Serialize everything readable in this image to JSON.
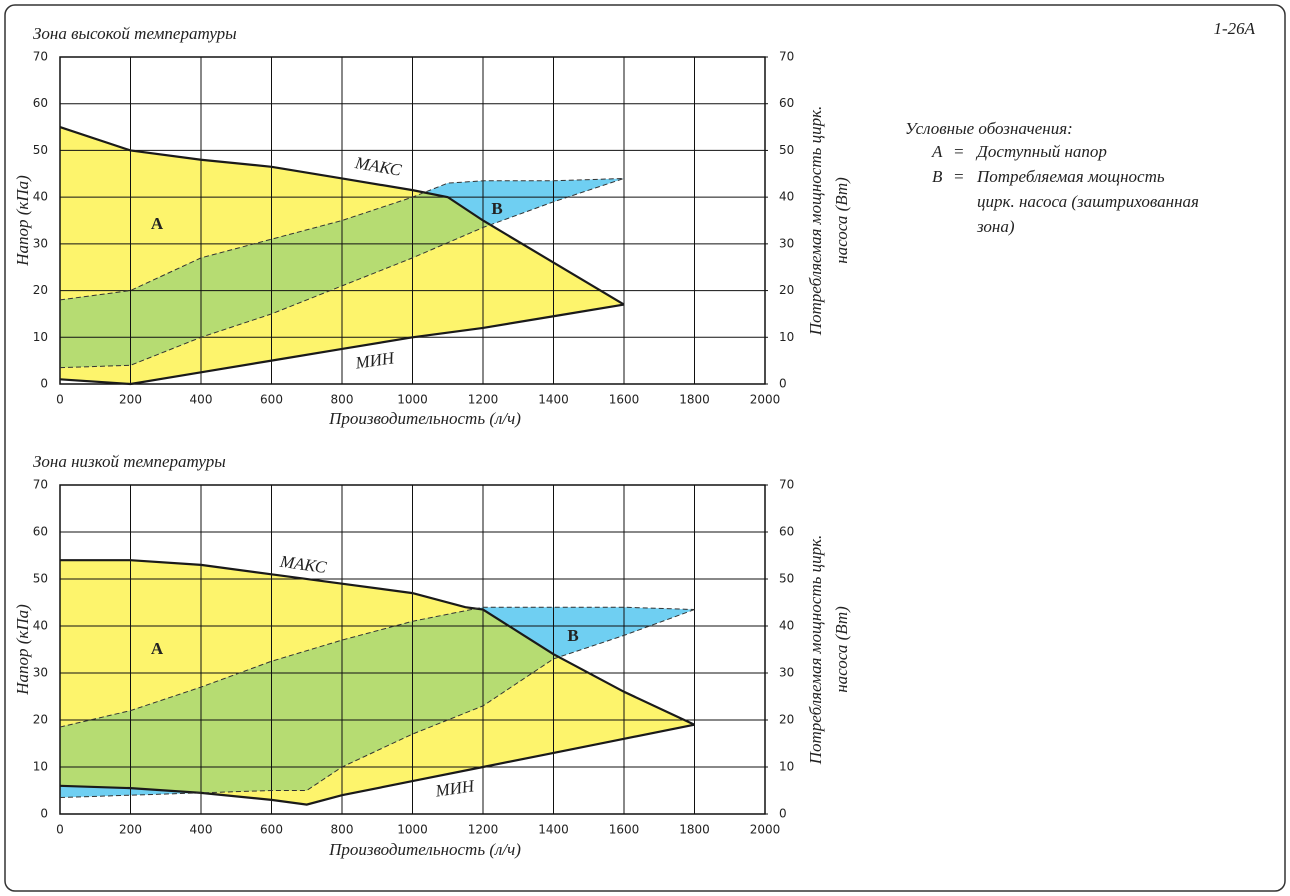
{
  "code": "1-26A",
  "legend": {
    "title": "Условные обозначения:",
    "items": [
      {
        "key": "A",
        "sep": "=",
        "lines": [
          "Доступный напор"
        ]
      },
      {
        "key": "B",
        "sep": "=",
        "lines": [
          "Потребляемая мощность",
          "цирк. насоса (заштрихованная",
          "зона)"
        ]
      }
    ]
  },
  "chart_data": [
    {
      "type": "area",
      "title": "Зона высокой температуры",
      "xlabel": "Производительность (л/ч)",
      "ylabel": "Напор (кПа)",
      "y2label": [
        "Потребляемая мощность цирк.",
        "насоса (Вт)"
      ],
      "xlim": [
        0,
        2000
      ],
      "xticks": [
        0,
        200,
        400,
        600,
        800,
        1000,
        1200,
        1400,
        1600,
        1800,
        2000
      ],
      "ylim": [
        0,
        70
      ],
      "yticks": [
        0,
        10,
        20,
        30,
        40,
        50,
        60,
        70
      ],
      "y2lim": [
        0,
        70
      ],
      "y2ticks": [
        0,
        10,
        20,
        30,
        40,
        50,
        60,
        70
      ],
      "grid": true,
      "overlap_color": "#b6dc72",
      "bands": [
        {
          "name": "A",
          "color": "#fdf46c",
          "edge": "solid",
          "upper": {
            "name": "МАКС",
            "x": [
              0,
              200,
              400,
              600,
              800,
              1000,
              1100,
              1200,
              1400,
              1600
            ],
            "values": [
              55,
              50,
              48,
              46.5,
              44,
              41.5,
              40,
              35,
              26,
              17
            ]
          },
          "lower": {
            "name": "МИН",
            "x": [
              0,
              200,
              400,
              600,
              800,
              1000,
              1200,
              1400,
              1600
            ],
            "values": [
              1,
              0,
              2.5,
              5,
              7.5,
              10,
              12,
              14.5,
              17
            ]
          }
        },
        {
          "name": "B",
          "color": "#6fcff2",
          "edge": "dashed",
          "axis": "y2",
          "upper": {
            "x": [
              0,
              200,
              400,
              600,
              800,
              1000,
              1100,
              1200,
              1400,
              1600
            ],
            "values": [
              18,
              20,
              27,
              31,
              35,
              40,
              43,
              43.5,
              43.5,
              44
            ]
          },
          "lower": {
            "x": [
              0,
              200,
              400,
              600,
              800,
              1000,
              1200,
              1400,
              1600
            ],
            "values": [
              3.5,
              4,
              10,
              15,
              21,
              27,
              33.5,
              39,
              44
            ]
          }
        }
      ]
    },
    {
      "type": "area",
      "title": "Зона низкой температуры",
      "xlabel": "Производительность (л/ч)",
      "ylabel": "Напор (кПа)",
      "y2label": [
        "Потребляемая мощность цирк.",
        "насоса (Вт)"
      ],
      "xlim": [
        0,
        2000
      ],
      "xticks": [
        0,
        200,
        400,
        600,
        800,
        1000,
        1200,
        1400,
        1600,
        1800,
        2000
      ],
      "ylim": [
        0,
        70
      ],
      "yticks": [
        0,
        10,
        20,
        30,
        40,
        50,
        60,
        70
      ],
      "y2lim": [
        0,
        70
      ],
      "y2ticks": [
        0,
        10,
        20,
        30,
        40,
        50,
        60,
        70
      ],
      "grid": true,
      "overlap_color": "#b6dc72",
      "bands": [
        {
          "name": "A",
          "color": "#fdf46c",
          "edge": "solid",
          "upper": {
            "name": "МАКС",
            "x": [
              0,
              200,
              400,
              600,
              800,
              1000,
              1150,
              1200,
              1400,
              1600,
              1800
            ],
            "values": [
              54,
              54,
              53,
              51,
              49,
              47,
              44,
              43.5,
              34,
              26,
              19
            ]
          },
          "lower": {
            "name": "МИН",
            "x": [
              0,
              200,
              400,
              600,
              700,
              800,
              1000,
              1200,
              1400,
              1600,
              1800
            ],
            "values": [
              6,
              5.5,
              4.5,
              3,
              2,
              4,
              7,
              10,
              13,
              16,
              19
            ]
          }
        },
        {
          "name": "B",
          "color": "#6fcff2",
          "edge": "dashed",
          "axis": "y2",
          "upper": {
            "x": [
              0,
              200,
              400,
              600,
              800,
              1000,
              1200,
              1400,
              1600,
              1800
            ],
            "values": [
              18.5,
              22,
              27,
              32.5,
              37,
              41,
              44,
              44,
              44,
              43.5
            ]
          },
          "lower": {
            "x": [
              0,
              200,
              400,
              600,
              700,
              800,
              1000,
              1200,
              1400,
              1600,
              1800
            ],
            "values": [
              3.5,
              4,
              4.5,
              5,
              5,
              10,
              17,
              23,
              33,
              38,
              43.5
            ]
          }
        }
      ]
    }
  ]
}
